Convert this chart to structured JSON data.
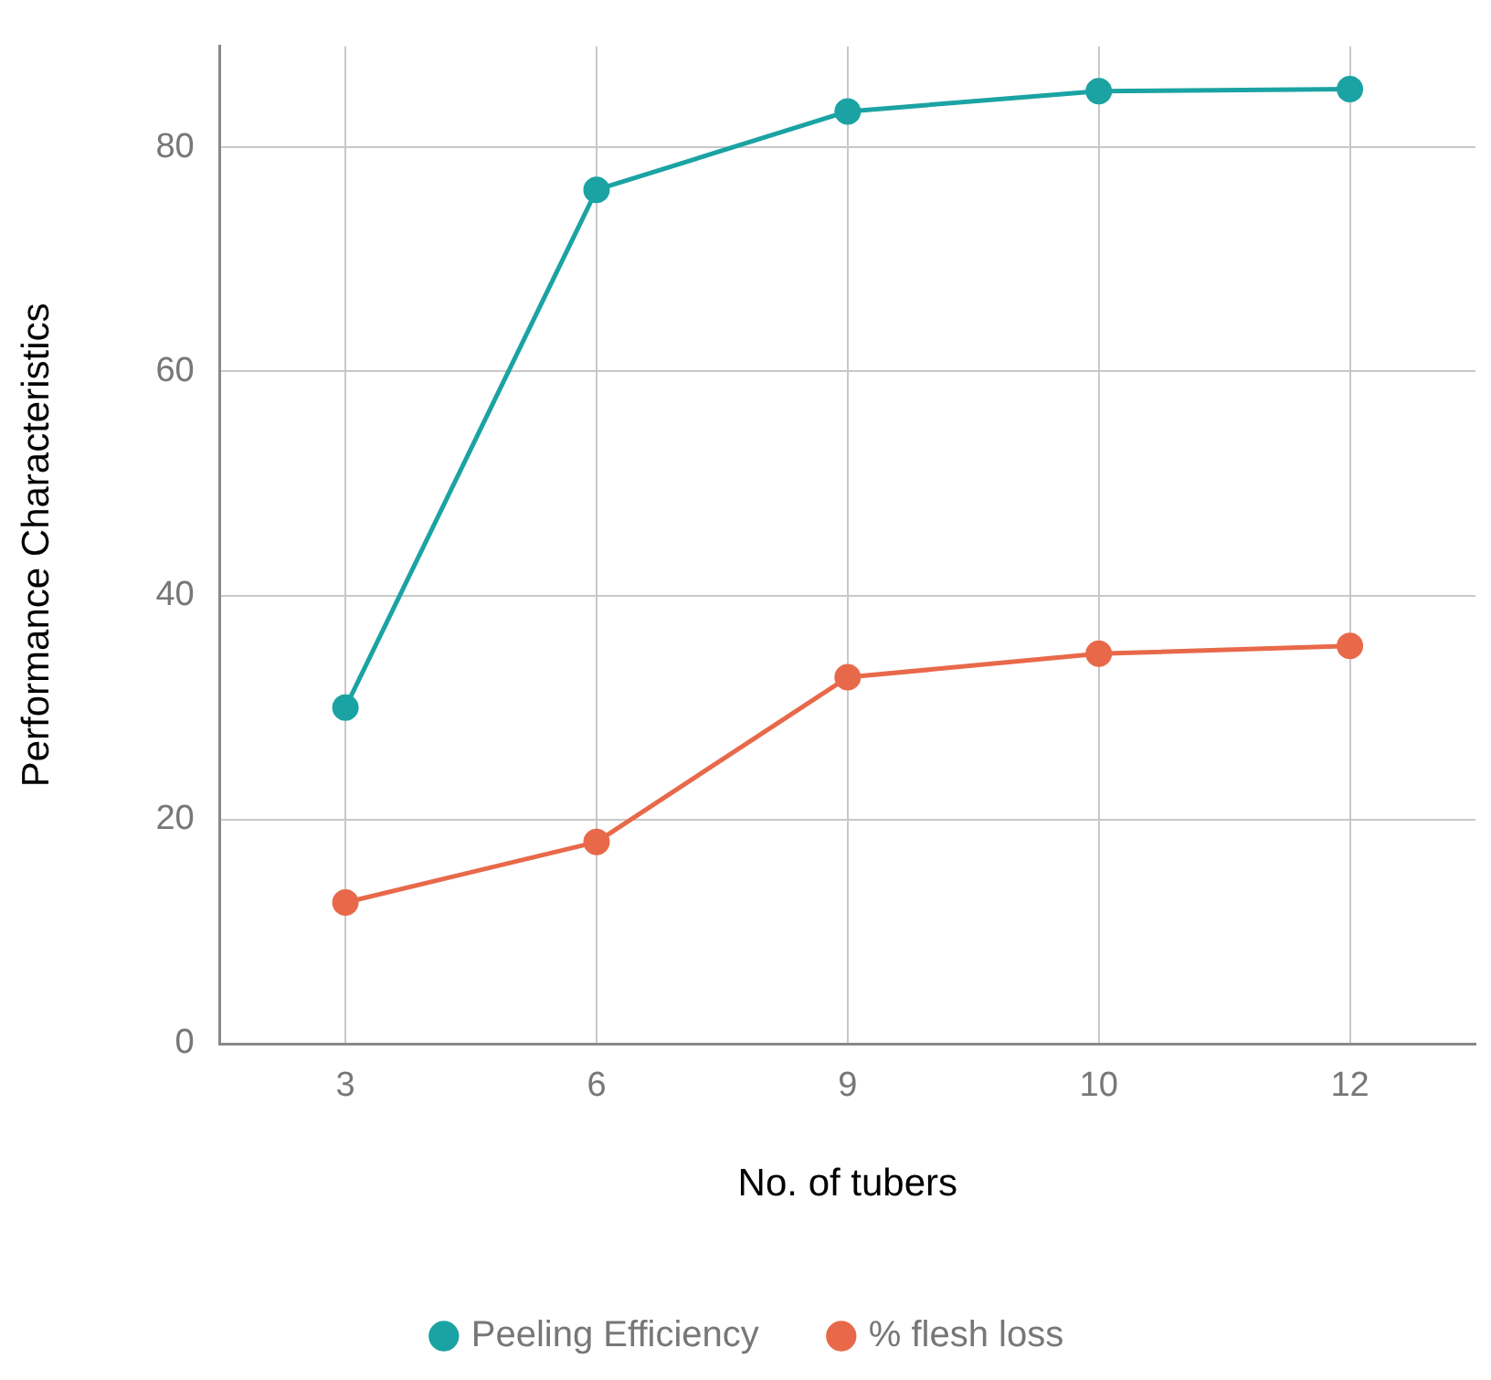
{
  "chart_data": {
    "type": "line",
    "xlabel": "No. of tubers",
    "ylabel": "Performance Characteristics",
    "categories": [
      "3",
      "6",
      "9",
      "10",
      "12"
    ],
    "series": [
      {
        "name": "Peeling Efficiency",
        "color": "#1ba3a3",
        "values": [
          30,
          76.2,
          83.2,
          85,
          85.2
        ]
      },
      {
        "name": "% flesh loss",
        "color": "#e8694a",
        "values": [
          12.6,
          18,
          32.7,
          34.8,
          35.5
        ]
      }
    ],
    "ylim": [
      0,
      89
    ],
    "yticks": [
      0,
      20,
      40,
      60,
      80
    ],
    "grid": true,
    "legend": "bottom",
    "marker": "circle",
    "line_style": "solid"
  }
}
